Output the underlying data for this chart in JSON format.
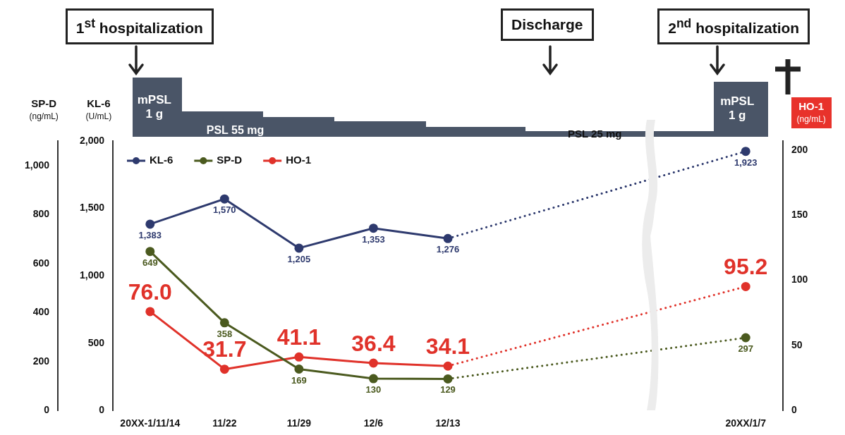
{
  "chart_data": {
    "type": "line",
    "categories": [
      "20XX-1/11/14",
      "11/22",
      "11/29",
      "12/6",
      "12/13",
      null,
      null,
      null,
      "20XX/1/7"
    ],
    "ylabel": "KL-6 (U/mL)",
    "y3label": "SP-D (ng/mL)",
    "y2label": "HO-1 (ng/mL)",
    "ylim": [
      0,
      2000
    ],
    "yticks": [
      0,
      500,
      {
        "value": 1000,
        "label": "1,000"
      },
      {
        "value": 1500,
        "label": "1,500"
      },
      {
        "value": 2000,
        "label": "2,000"
      }
    ],
    "y3lim": [
      0,
      1100
    ],
    "y3ticks": [
      0,
      200,
      400,
      600,
      800,
      {
        "value": 1000,
        "label": "1,000"
      }
    ],
    "y2lim": [
      0,
      207
    ],
    "y2ticks": [
      0,
      50,
      100,
      150,
      200
    ],
    "series": [
      {
        "name": "KL-6",
        "color": "#2e3a6e",
        "values": [
          1383,
          1570,
          1205,
          1353,
          1276,
          null,
          null,
          null,
          1923
        ],
        "value_labels": [
          "1,383",
          "1,570",
          "1,205",
          "1,353",
          "1,276",
          null,
          null,
          null,
          "1,923"
        ]
      },
      {
        "name": "SP-D",
        "color": "#4b5a1f",
        "axis": "y3",
        "values": [
          649,
          358,
          169,
          130,
          129,
          null,
          null,
          null,
          297
        ],
        "value_labels": [
          "649",
          "358",
          "169",
          "130",
          "129",
          null,
          null,
          null,
          "297"
        ]
      },
      {
        "name": "HO-1",
        "color": "#e0322a",
        "axis": "y2",
        "values": [
          76.0,
          31.7,
          41.1,
          36.4,
          34.1,
          null,
          null,
          null,
          95.2
        ],
        "value_labels": [
          "76.0",
          "31.7",
          "41.1",
          "36.4",
          "34.1",
          null,
          null,
          null,
          "95.2"
        ]
      }
    ],
    "marker": "circle",
    "grid": false,
    "legend": "top left",
    "annotations": [
      "1$^{st}$ hospitalization",
      "Discharge",
      "2$^{nd}$ hospitalization",
      "mPSL 1 g",
      "PSL 55 mg",
      "PSL 25 mg",
      "mPSL 1 g"
    ]
  }
}
